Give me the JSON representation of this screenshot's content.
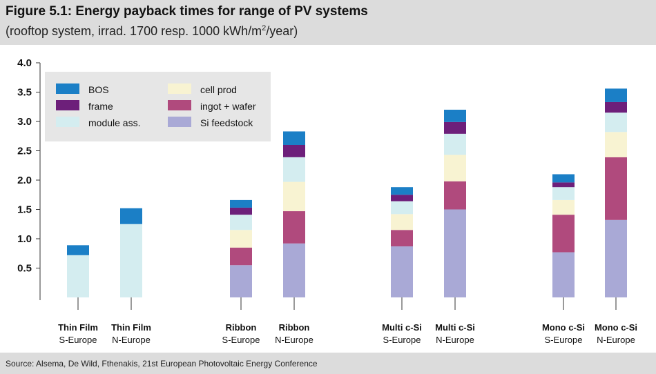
{
  "header": {
    "title": "Figure 5.1: Energy payback times for range of PV systems",
    "subtitle_main": "(rooftop system, irrad. 1700 resp. 1000 kWh/m",
    "subtitle_sup": "2",
    "subtitle_end": "/year)"
  },
  "footer": {
    "source": "Source: Alsema, De Wild, Fthenakis, 21st European Photovoltaic Energy Conference"
  },
  "colors": {
    "background_band": "#dcdcdc",
    "legend_box": "#e6e6e6",
    "axis": "#333333",
    "Si feedstock": "#a9a9d6",
    "ingot + wafer": "#b04a7d",
    "cell prod": "#f8f3d2",
    "module ass.": "#d4edf0",
    "frame": "#6d1f7a",
    "BOS": "#1b7fc6"
  },
  "chart_data": {
    "type": "bar",
    "stacked": true,
    "ylim": [
      0,
      4.0
    ],
    "yticks": [
      "0.5",
      "1.0",
      "1.5",
      "2.0",
      "2.5",
      "3.0",
      "3.5",
      "4.0"
    ],
    "ytick_values": [
      0.5,
      1.0,
      1.5,
      2.0,
      2.5,
      3.0,
      3.5,
      4.0
    ],
    "categories": [
      {
        "line1": "Thin Film",
        "line2": "S-Europe"
      },
      {
        "line1": "Thin Film",
        "line2": "N-Europe"
      },
      {
        "line1": "Ribbon",
        "line2": "S-Europe"
      },
      {
        "line1": "Ribbon",
        "line2": "N-Europe"
      },
      {
        "line1": "Multi c-Si",
        "line2": "S-Europe"
      },
      {
        "line1": "Multi c-Si",
        "line2": "N-Europe"
      },
      {
        "line1": "Mono c-Si",
        "line2": "S-Europe"
      },
      {
        "line1": "Mono c-Si",
        "line2": "N-Europe"
      }
    ],
    "series": [
      {
        "name": "Si feedstock",
        "values": [
          0,
          0,
          0.55,
          0.92,
          0.87,
          1.5,
          0.77,
          1.32
        ]
      },
      {
        "name": "ingot + wafer",
        "values": [
          0,
          0,
          0.3,
          0.55,
          0.28,
          0.48,
          0.64,
          1.07
        ]
      },
      {
        "name": "cell prod",
        "values": [
          0,
          0,
          0.3,
          0.5,
          0.27,
          0.45,
          0.25,
          0.43
        ]
      },
      {
        "name": "module ass.",
        "values": [
          0.72,
          1.25,
          0.26,
          0.42,
          0.22,
          0.36,
          0.22,
          0.33
        ]
      },
      {
        "name": "frame",
        "values": [
          0,
          0,
          0.12,
          0.21,
          0.11,
          0.2,
          0.08,
          0.18
        ]
      },
      {
        "name": "BOS",
        "values": [
          0.17,
          0.27,
          0.13,
          0.23,
          0.13,
          0.21,
          0.14,
          0.23
        ]
      }
    ],
    "legend": {
      "placement": "top-left",
      "columns": [
        [
          "BOS",
          "frame",
          "module ass."
        ],
        [
          "cell prod",
          "ingot + wafer",
          "Si feedstock"
        ]
      ]
    }
  }
}
